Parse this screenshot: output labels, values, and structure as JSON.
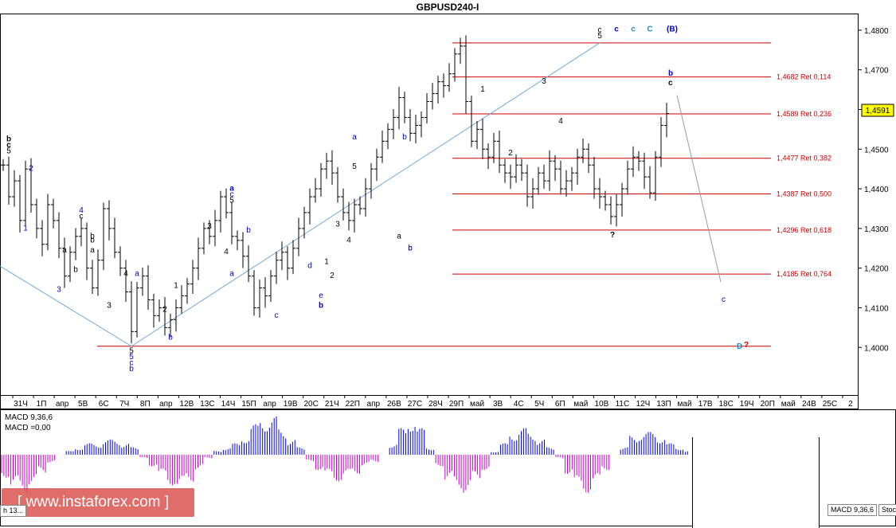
{
  "title": "GBPUSD240-I",
  "colors": {
    "fibo": "#cc0000",
    "price_box": "#ffff00",
    "macd_pos": "#0000ff",
    "macd_neg": "#cc00cc",
    "channel": "#6fa8dc",
    "wave_black": "#000000",
    "wave_blue": "#0000cc",
    "wave_cyan": "#1f8fbf",
    "wave_red": "#cc0000"
  },
  "price_axis": {
    "ticks": [
      "1,4800",
      "1,4700",
      "1,4600",
      "1,4500",
      "1,4400",
      "1,4300",
      "1,4200",
      "1,4100",
      "1,4000"
    ],
    "current_price": "1,4591"
  },
  "time_axis": {
    "ticks": [
      "31Ч",
      "1П",
      "апр",
      "5В",
      "6С",
      "7Ч",
      "8П",
      "апр",
      "12В",
      "13С",
      "14Ч",
      "15П",
      "апр",
      "19В",
      "20С",
      "21Ч",
      "22П",
      "апр",
      "26В",
      "27С",
      "28Ч",
      "29П",
      "май",
      "3В",
      "4С",
      "5Ч",
      "6П",
      "май",
      "10В",
      "11С",
      "12Ч",
      "13П",
      "май",
      "17В",
      "18С",
      "19Ч",
      "20П",
      "май",
      "24В",
      "25С",
      "2"
    ]
  },
  "chart_data": {
    "type": "candlestick",
    "symbol": "GBPUSD240-I",
    "ylim": [
      1.388,
      1.484
    ],
    "close_path": [
      1.446,
      1.438,
      1.442,
      1.432,
      1.445,
      1.436,
      1.43,
      1.426,
      1.436,
      1.432,
      1.425,
      1.418,
      1.424,
      1.428,
      1.43,
      1.42,
      1.415,
      1.422,
      1.435,
      1.43,
      1.424,
      1.42,
      1.414,
      1.404,
      1.415,
      1.418,
      1.412,
      1.408,
      1.41,
      1.405,
      1.407,
      1.41,
      1.413,
      1.416,
      1.42,
      1.425,
      1.43,
      1.428,
      1.432,
      1.438,
      1.434,
      1.428,
      1.427,
      1.423,
      1.418,
      1.41,
      1.415,
      1.413,
      1.418,
      1.422,
      1.424,
      1.42,
      1.425,
      1.43,
      1.434,
      1.438,
      1.44,
      1.445,
      1.447,
      1.444,
      1.438,
      1.434,
      1.432,
      1.436,
      1.435,
      1.44,
      1.445,
      1.448,
      1.452,
      1.455,
      1.458,
      1.463,
      1.458,
      1.454,
      1.456,
      1.458,
      1.462,
      1.464,
      1.467,
      1.466,
      1.469,
      1.474,
      1.476,
      1.462,
      1.452,
      1.455,
      1.45,
      1.448,
      1.452,
      1.446,
      1.444,
      1.443,
      1.446,
      1.444,
      1.438,
      1.44,
      1.444,
      1.442,
      1.447,
      1.445,
      1.44,
      1.442,
      1.444,
      1.448,
      1.45,
      1.446,
      1.44,
      1.438,
      1.436,
      1.433,
      1.436,
      1.44,
      1.445,
      1.448,
      1.447,
      1.443,
      1.439,
      1.448,
      1.456,
      1.459
    ],
    "fibonacci_levels": [
      {
        "price": 1.4768,
        "label": ""
      },
      {
        "price": 1.4682,
        "label": "1,4682 Ret 0,114"
      },
      {
        "price": 1.4589,
        "label": "1,4589 Ret 0,236"
      },
      {
        "price": 1.4477,
        "label": "1,4477 Ret 0,382"
      },
      {
        "price": 1.4387,
        "label": "1,4387 Ret 0,500"
      },
      {
        "price": 1.4296,
        "label": "1,4296 Ret 0,618"
      },
      {
        "price": 1.4185,
        "label": "1,4185 Ret 0,764"
      },
      {
        "price": 1.4003,
        "label": ""
      }
    ],
    "projection": {
      "from_price": 1.4636,
      "to_price": 1.4165
    },
    "wave_labels": [
      {
        "t": "b",
        "bar": 1,
        "price": 1.452,
        "c": "wave_black",
        "bold": true
      },
      {
        "t": "c",
        "bar": 1,
        "price": 1.4505,
        "c": "wave_black",
        "bold": true
      },
      {
        "t": "5",
        "bar": 1,
        "price": 1.449,
        "c": "wave_black"
      },
      {
        "t": "2",
        "bar": 5,
        "price": 1.4445,
        "c": "wave_blue"
      },
      {
        "t": "1",
        "bar": 4,
        "price": 1.4295,
        "c": "wave_blue"
      },
      {
        "t": "4",
        "bar": 14,
        "price": 1.434,
        "c": "wave_blue"
      },
      {
        "t": "c",
        "bar": 14,
        "price": 1.4325,
        "c": "wave_black"
      },
      {
        "t": "a",
        "bar": 11,
        "price": 1.424,
        "c": "wave_black"
      },
      {
        "t": "b",
        "bar": 13,
        "price": 1.419,
        "c": "wave_black"
      },
      {
        "t": "3",
        "bar": 10,
        "price": 1.414,
        "c": "wave_blue"
      },
      {
        "t": "b",
        "bar": 16,
        "price": 1.4265,
        "c": "wave_black"
      },
      {
        "t": "a",
        "bar": 16,
        "price": 1.424,
        "c": "wave_black"
      },
      {
        "t": "b",
        "bar": 16,
        "price": 1.4275,
        "c": "wave_black"
      },
      {
        "t": "4",
        "bar": 22,
        "price": 1.418,
        "c": "wave_black"
      },
      {
        "t": "a",
        "bar": 24,
        "price": 1.418,
        "c": "wave_blue"
      },
      {
        "t": "3",
        "bar": 19,
        "price": 1.41,
        "c": "wave_black"
      },
      {
        "t": "5",
        "bar": 23,
        "price": 1.3985,
        "c": "wave_black"
      },
      {
        "t": "5",
        "bar": 23,
        "price": 1.397,
        "c": "wave_blue"
      },
      {
        "t": "c",
        "bar": 23,
        "price": 1.3955,
        "c": "wave_blue"
      },
      {
        "t": "b",
        "bar": 23,
        "price": 1.394,
        "c": "wave_blue"
      },
      {
        "t": "b",
        "bar": 30,
        "price": 1.402,
        "c": "wave_blue"
      },
      {
        "t": "2",
        "bar": 29,
        "price": 1.409,
        "c": "wave_black"
      },
      {
        "t": "1",
        "bar": 31,
        "price": 1.415,
        "c": "wave_black"
      },
      {
        "t": "3",
        "bar": 37,
        "price": 1.43,
        "c": "wave_black"
      },
      {
        "t": "4",
        "bar": 40,
        "price": 1.4235,
        "c": "wave_black"
      },
      {
        "t": "b",
        "bar": 44,
        "price": 1.429,
        "c": "wave_blue"
      },
      {
        "t": "5",
        "bar": 41,
        "price": 1.4365,
        "c": "wave_black"
      },
      {
        "t": "c",
        "bar": 41,
        "price": 1.438,
        "c": "wave_blue"
      },
      {
        "t": "a",
        "bar": 41,
        "price": 1.4395,
        "c": "wave_blue",
        "bold": true
      },
      {
        "t": "a",
        "bar": 41,
        "price": 1.418,
        "c": "wave_blue"
      },
      {
        "t": "c",
        "bar": 49,
        "price": 1.4075,
        "c": "wave_blue"
      },
      {
        "t": "d",
        "bar": 55,
        "price": 1.42,
        "c": "wave_blue"
      },
      {
        "t": "1",
        "bar": 58,
        "price": 1.421,
        "c": "wave_black"
      },
      {
        "t": "2",
        "bar": 59,
        "price": 1.4175,
        "c": "wave_black"
      },
      {
        "t": "e",
        "bar": 57,
        "price": 1.4125,
        "c": "wave_blue"
      },
      {
        "t": "b",
        "bar": 57,
        "price": 1.41,
        "c": "wave_blue",
        "bold": true
      },
      {
        "t": "3",
        "bar": 60,
        "price": 1.4305,
        "c": "wave_black"
      },
      {
        "t": "4",
        "bar": 62,
        "price": 1.4265,
        "c": "wave_black"
      },
      {
        "t": "a",
        "bar": 63,
        "price": 1.4525,
        "c": "wave_blue"
      },
      {
        "t": "5",
        "bar": 63,
        "price": 1.445,
        "c": "wave_black"
      },
      {
        "t": "a",
        "bar": 71,
        "price": 1.4275,
        "c": "wave_black"
      },
      {
        "t": "c",
        "bar": 73,
        "price": 1.4245,
        "c": "wave_blue"
      },
      {
        "t": "b",
        "bar": 73,
        "price": 1.4245,
        "c": "wave_blue"
      },
      {
        "t": "b",
        "bar": 72,
        "price": 1.4525,
        "c": "wave_blue"
      },
      {
        "t": "1",
        "bar": 86,
        "price": 1.4645,
        "c": "wave_black"
      },
      {
        "t": "2",
        "bar": 91,
        "price": 1.4485,
        "c": "wave_black"
      },
      {
        "t": "3",
        "bar": 97,
        "price": 1.4665,
        "c": "wave_black"
      },
      {
        "t": "4",
        "bar": 100,
        "price": 1.4565,
        "c": "wave_black"
      },
      {
        "t": "c",
        "bar": 107,
        "price": 1.4795,
        "c": "wave_black"
      },
      {
        "t": "5",
        "bar": 107,
        "price": 1.478,
        "c": "wave_black"
      },
      {
        "t": "c",
        "bar": 110,
        "price": 1.4797,
        "c": "wave_blue",
        "bold": true
      },
      {
        "t": "c",
        "bar": 113,
        "price": 1.4797,
        "c": "wave_cyan",
        "bold": true
      },
      {
        "t": "C",
        "bar": 116,
        "price": 1.4797,
        "c": "wave_cyan",
        "bold": true
      },
      {
        "t": "(B)",
        "bar": 120,
        "price": 1.4797,
        "c": "wave_blue",
        "bold": true
      }
    ],
    "macd": {
      "label1": "MACD 9,36,6",
      "label2": "MACD =0,00",
      "values": [
        -0.6,
        -0.9,
        -1.0,
        -0.8,
        -0.5,
        -0.2,
        0.0,
        0.1,
        0.2,
        0.3,
        0.3,
        0.4,
        0.4,
        0.3,
        0.2,
        -0.1,
        -0.3,
        -0.6,
        -0.8,
        -0.9,
        -0.7,
        -0.4,
        -0.1,
        0.1,
        0.2,
        0.3,
        0.5,
        0.8,
        1.0,
        1.0,
        0.7,
        0.4,
        0.2,
        -0.2,
        -0.4,
        -0.6,
        -0.7,
        -0.6,
        -0.5,
        -0.3,
        -0.2,
        0.0,
        0.3,
        0.7,
        1.0,
        0.7,
        0.2,
        -0.3,
        -0.7,
        -0.9,
        -1.0,
        -0.7,
        -0.4,
        0.1,
        0.3,
        0.6,
        0.7,
        0.6,
        0.4,
        0.2,
        -0.1,
        -0.5,
        -0.9,
        -1.0,
        -0.8,
        -0.4,
        0.0,
        0.2,
        0.5,
        0.6,
        0.6,
        0.5,
        0.3,
        0.2,
        0.1
      ]
    }
  },
  "annotations": {
    "d_label": "D",
    "question": "?",
    "question2": "?",
    "c_target": "c",
    "b_top": "b",
    "c_top": "c"
  },
  "watermark": "[ www.instaforex.com ]",
  "tabs": {
    "left_tab": "h 13...",
    "macd_tab": "MACD 9,36,6",
    "stoch_tab": "Stoc"
  }
}
